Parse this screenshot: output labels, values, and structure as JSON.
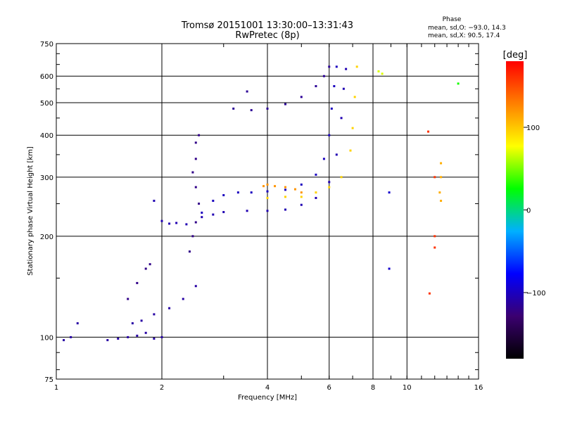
{
  "chart_data": {
    "type": "scatter",
    "title": "Tromsø 20151001 13:30:00–13:31:43",
    "subtitle": "RwPretec (8p)",
    "xlabel": "Frequency [MHz]",
    "ylabel": "Stationary phase Virtual Height [km]",
    "xscale": "log2",
    "yscale": "log",
    "xlim": [
      1,
      16
    ],
    "ylim": [
      75,
      750
    ],
    "x_ticks": [
      1,
      2,
      4,
      6,
      8,
      10,
      16
    ],
    "y_ticks": [
      75,
      100,
      200,
      300,
      400,
      500,
      600,
      750
    ],
    "grid": true,
    "phase_stats": {
      "heading": "Phase",
      "line_o": "mean, sd,O: −93.0, 14.3",
      "line_x": "mean, sd,X:  90.5, 17.4"
    },
    "colorbar": {
      "label": "[deg]",
      "ticks": [
        "100",
        "0",
        "−100"
      ],
      "tick_values": [
        100,
        0,
        -100
      ],
      "range": [
        -180,
        180
      ],
      "colors": [
        "#000000",
        "#3b0070",
        "#0000ff",
        "#00b0ff",
        "#00ff00",
        "#ffff00",
        "#ff8000",
        "#ff0000"
      ]
    },
    "series": [
      {
        "phase": -110,
        "points": [
          [
            1.05,
            98
          ],
          [
            1.1,
            100
          ],
          [
            1.15,
            110
          ],
          [
            1.4,
            98
          ],
          [
            1.5,
            99
          ],
          [
            1.6,
            100
          ],
          [
            1.7,
            101
          ],
          [
            1.8,
            103
          ],
          [
            1.9,
            99
          ],
          [
            2.0,
            100
          ],
          [
            1.65,
            110
          ],
          [
            1.75,
            112
          ],
          [
            1.9,
            117
          ],
          [
            2.1,
            122
          ],
          [
            2.3,
            130
          ],
          [
            2.5,
            142
          ]
        ]
      },
      {
        "phase": -120,
        "points": [
          [
            1.6,
            130
          ],
          [
            1.7,
            145
          ],
          [
            1.8,
            160
          ],
          [
            1.85,
            165
          ],
          [
            2.4,
            180
          ],
          [
            2.45,
            200
          ],
          [
            2.5,
            220
          ],
          [
            2.55,
            250
          ],
          [
            2.5,
            280
          ],
          [
            2.45,
            310
          ],
          [
            2.5,
            340
          ],
          [
            2.5,
            380
          ],
          [
            2.55,
            400
          ]
        ]
      },
      {
        "phase": -105,
        "points": [
          [
            1.9,
            255
          ],
          [
            2.0,
            222
          ],
          [
            2.1,
            218
          ],
          [
            2.2,
            219
          ],
          [
            2.35,
            217
          ],
          [
            2.6,
            228
          ],
          [
            2.8,
            232
          ],
          [
            3.0,
            236
          ],
          [
            3.5,
            238
          ],
          [
            4.0,
            238
          ],
          [
            4.5,
            240
          ],
          [
            5.0,
            248
          ],
          [
            5.5,
            260
          ],
          [
            6.0,
            290
          ],
          [
            6.3,
            350
          ],
          [
            6.5,
            450
          ],
          [
            6.6,
            550
          ],
          [
            6.7,
            630
          ]
        ]
      },
      {
        "phase": -100,
        "points": [
          [
            2.6,
            235
          ],
          [
            2.8,
            255
          ],
          [
            3.0,
            265
          ],
          [
            3.3,
            270
          ],
          [
            3.6,
            270
          ],
          [
            4.0,
            272
          ],
          [
            4.5,
            275
          ],
          [
            5.0,
            285
          ],
          [
            5.5,
            305
          ],
          [
            5.8,
            340
          ],
          [
            6.0,
            400
          ],
          [
            6.1,
            480
          ],
          [
            6.2,
            560
          ],
          [
            6.3,
            640
          ]
        ]
      },
      {
        "phase": -115,
        "points": [
          [
            3.5,
            540
          ],
          [
            3.2,
            480
          ],
          [
            3.6,
            475
          ],
          [
            4.0,
            480
          ],
          [
            4.5,
            495
          ],
          [
            5.0,
            520
          ],
          [
            5.5,
            560
          ],
          [
            5.8,
            600
          ],
          [
            6.0,
            640
          ]
        ]
      },
      {
        "phase": 120,
        "points": [
          [
            3.9,
            282
          ],
          [
            4.0,
            285
          ],
          [
            4.2,
            282
          ],
          [
            4.5,
            280
          ],
          [
            4.8,
            276
          ],
          [
            5.0,
            270
          ]
        ]
      },
      {
        "phase": 95,
        "points": [
          [
            4.0,
            260
          ],
          [
            4.5,
            262
          ],
          [
            5.0,
            262
          ],
          [
            5.5,
            270
          ],
          [
            6.0,
            280
          ],
          [
            6.5,
            300
          ],
          [
            6.9,
            360
          ],
          [
            7.0,
            420
          ],
          [
            7.1,
            520
          ],
          [
            7.2,
            640
          ]
        ]
      },
      {
        "phase": 70,
        "points": [
          [
            8.3,
            620
          ],
          [
            8.5,
            610
          ]
        ]
      },
      {
        "phase": 160,
        "points": [
          [
            11.5,
            410
          ],
          [
            12.0,
            300
          ],
          [
            12.0,
            200
          ],
          [
            12.0,
            185
          ],
          [
            11.6,
            135
          ]
        ]
      },
      {
        "phase": 110,
        "points": [
          [
            12.5,
            330
          ],
          [
            12.5,
            300
          ],
          [
            12.4,
            270
          ],
          [
            12.5,
            255
          ]
        ]
      },
      {
        "phase": -95,
        "points": [
          [
            8.9,
            270
          ],
          [
            8.9,
            160
          ]
        ]
      },
      {
        "phase": 30,
        "points": [
          [
            14.0,
            570
          ]
        ]
      }
    ]
  }
}
